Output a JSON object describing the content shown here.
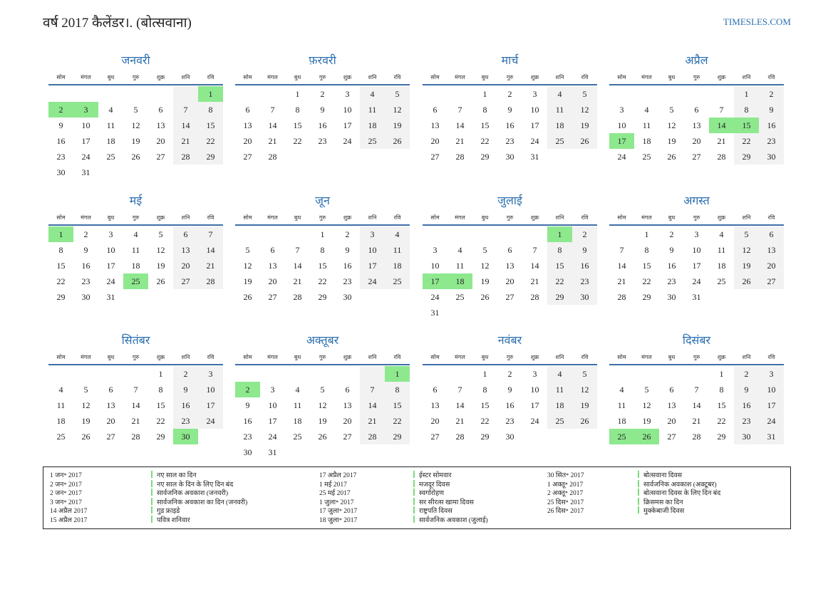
{
  "header": {
    "title": "वर्ष 2017 कैलेंडर।. (बोत्सवाना)",
    "site": "TIMESLES.COM"
  },
  "weekdays": [
    "सोम",
    "मंगल",
    "बुध",
    "गुरु",
    "शुक्र",
    "शनि",
    "रवि"
  ],
  "months": [
    {
      "name": "जनवरी",
      "weeks": [
        [
          null,
          null,
          null,
          null,
          null,
          null,
          1
        ],
        [
          2,
          3,
          4,
          5,
          6,
          7,
          8
        ],
        [
          9,
          10,
          11,
          12,
          13,
          14,
          15
        ],
        [
          16,
          17,
          18,
          19,
          20,
          21,
          22
        ],
        [
          23,
          24,
          25,
          26,
          27,
          28,
          29
        ],
        [
          30,
          31
        ]
      ],
      "holidays": [
        1,
        2,
        3
      ]
    },
    {
      "name": "फ़रवरी",
      "weeks": [
        [
          null,
          null,
          1,
          2,
          3,
          4,
          5
        ],
        [
          6,
          7,
          8,
          9,
          10,
          11,
          12
        ],
        [
          13,
          14,
          15,
          16,
          17,
          18,
          19
        ],
        [
          20,
          21,
          22,
          23,
          24,
          25,
          26
        ],
        [
          27,
          28
        ]
      ],
      "holidays": []
    },
    {
      "name": "मार्च",
      "weeks": [
        [
          null,
          null,
          1,
          2,
          3,
          4,
          5
        ],
        [
          6,
          7,
          8,
          9,
          10,
          11,
          12
        ],
        [
          13,
          14,
          15,
          16,
          17,
          18,
          19
        ],
        [
          20,
          21,
          22,
          23,
          24,
          25,
          26
        ],
        [
          27,
          28,
          29,
          30,
          31
        ]
      ],
      "holidays": []
    },
    {
      "name": "अप्रैल",
      "weeks": [
        [
          null,
          null,
          null,
          null,
          null,
          1,
          2
        ],
        [
          3,
          4,
          5,
          6,
          7,
          8,
          9
        ],
        [
          10,
          11,
          12,
          13,
          14,
          15,
          16
        ],
        [
          17,
          18,
          19,
          20,
          21,
          22,
          23
        ],
        [
          24,
          25,
          26,
          27,
          28,
          29,
          30
        ]
      ],
      "holidays": [
        14,
        15,
        17
      ]
    },
    {
      "name": "मई",
      "weeks": [
        [
          1,
          2,
          3,
          4,
          5,
          6,
          7
        ],
        [
          8,
          9,
          10,
          11,
          12,
          13,
          14
        ],
        [
          15,
          16,
          17,
          18,
          19,
          20,
          21
        ],
        [
          22,
          23,
          24,
          25,
          26,
          27,
          28
        ],
        [
          29,
          30,
          31
        ]
      ],
      "holidays": [
        1,
        25
      ]
    },
    {
      "name": "जून",
      "weeks": [
        [
          null,
          null,
          null,
          1,
          2,
          3,
          4
        ],
        [
          5,
          6,
          7,
          8,
          9,
          10,
          11
        ],
        [
          12,
          13,
          14,
          15,
          16,
          17,
          18
        ],
        [
          19,
          20,
          21,
          22,
          23,
          24,
          25
        ],
        [
          26,
          27,
          28,
          29,
          30
        ]
      ],
      "holidays": []
    },
    {
      "name": "जुलाई",
      "weeks": [
        [
          null,
          null,
          null,
          null,
          null,
          1,
          2
        ],
        [
          3,
          4,
          5,
          6,
          7,
          8,
          9
        ],
        [
          10,
          11,
          12,
          13,
          14,
          15,
          16
        ],
        [
          17,
          18,
          19,
          20,
          21,
          22,
          23
        ],
        [
          24,
          25,
          26,
          27,
          28,
          29,
          30
        ],
        [
          31
        ]
      ],
      "holidays": [
        1,
        17,
        18
      ]
    },
    {
      "name": "अगस्त",
      "weeks": [
        [
          null,
          1,
          2,
          3,
          4,
          5,
          6
        ],
        [
          7,
          8,
          9,
          10,
          11,
          12,
          13
        ],
        [
          14,
          15,
          16,
          17,
          18,
          19,
          20
        ],
        [
          21,
          22,
          23,
          24,
          25,
          26,
          27
        ],
        [
          28,
          29,
          30,
          31
        ]
      ],
      "holidays": []
    },
    {
      "name": "सितंबर",
      "weeks": [
        [
          null,
          null,
          null,
          null,
          1,
          2,
          3
        ],
        [
          4,
          5,
          6,
          7,
          8,
          9,
          10
        ],
        [
          11,
          12,
          13,
          14,
          15,
          16,
          17
        ],
        [
          18,
          19,
          20,
          21,
          22,
          23,
          24
        ],
        [
          25,
          26,
          27,
          28,
          29,
          30
        ]
      ],
      "holidays": [
        30
      ]
    },
    {
      "name": "अक्तूबर",
      "weeks": [
        [
          null,
          null,
          null,
          null,
          null,
          null,
          1
        ],
        [
          2,
          3,
          4,
          5,
          6,
          7,
          8
        ],
        [
          9,
          10,
          11,
          12,
          13,
          14,
          15
        ],
        [
          16,
          17,
          18,
          19,
          20,
          21,
          22
        ],
        [
          23,
          24,
          25,
          26,
          27,
          28,
          29
        ],
        [
          30,
          31
        ]
      ],
      "holidays": [
        1,
        2
      ]
    },
    {
      "name": "नवंबर",
      "weeks": [
        [
          null,
          null,
          1,
          2,
          3,
          4,
          5
        ],
        [
          6,
          7,
          8,
          9,
          10,
          11,
          12
        ],
        [
          13,
          14,
          15,
          16,
          17,
          18,
          19
        ],
        [
          20,
          21,
          22,
          23,
          24,
          25,
          26
        ],
        [
          27,
          28,
          29,
          30
        ]
      ],
      "holidays": []
    },
    {
      "name": "दिसंबर",
      "weeks": [
        [
          null,
          null,
          null,
          null,
          1,
          2,
          3
        ],
        [
          4,
          5,
          6,
          7,
          8,
          9,
          10
        ],
        [
          11,
          12,
          13,
          14,
          15,
          16,
          17
        ],
        [
          18,
          19,
          20,
          21,
          22,
          23,
          24
        ],
        [
          25,
          26,
          27,
          28,
          29,
          30,
          31
        ]
      ],
      "holidays": [
        25,
        26
      ]
    }
  ],
  "holiday_list": [
    [
      [
        "1 जन॰ 2017",
        "नए साल का दिन"
      ],
      [
        "2 जन॰ 2017",
        "नए साल के दिन के लिए दिन बंद"
      ],
      [
        "2 जन॰ 2017",
        "सार्वजनिक अवकाश (जनवरी)"
      ],
      [
        "3 जन॰ 2017",
        "सार्वजनिक अवकाश का दिन (जनवरी)"
      ],
      [
        "14 अप्रैल 2017",
        "गुड फ्राइडे"
      ],
      [
        "15 अप्रैल 2017",
        "पवित्र शनिवार"
      ]
    ],
    [
      [
        "17 अप्रैल 2017",
        "ईस्टर सोमवार"
      ],
      [
        "1 मई 2017",
        "मजदूर दिवस"
      ],
      [
        "25 मई 2017",
        "स्वर्गारोहण"
      ],
      [
        "1 जुला॰ 2017",
        "सर सीरत्स खामा दिवस"
      ],
      [
        "17 जुला॰ 2017",
        "राष्ट्रपति दिवस"
      ],
      [
        "18 जुला॰ 2017",
        "सार्वजनिक अवकाश (जुलाई)"
      ]
    ],
    [
      [
        "30 सित॰ 2017",
        "बोत्सवाना दिवस"
      ],
      [
        "1 अक्तू॰ 2017",
        "सार्वजनिक अवकाश (अक्टूबर)"
      ],
      [
        "2 अक्तू॰ 2017",
        "बोत्सवाना दिवस के लिए दिन बंद"
      ],
      [
        "25 दिस॰ 2017",
        "क्रिसमस का दिन"
      ],
      [
        "26 दिस॰ 2017",
        "मुक्केबाजी दिवस"
      ]
    ]
  ]
}
